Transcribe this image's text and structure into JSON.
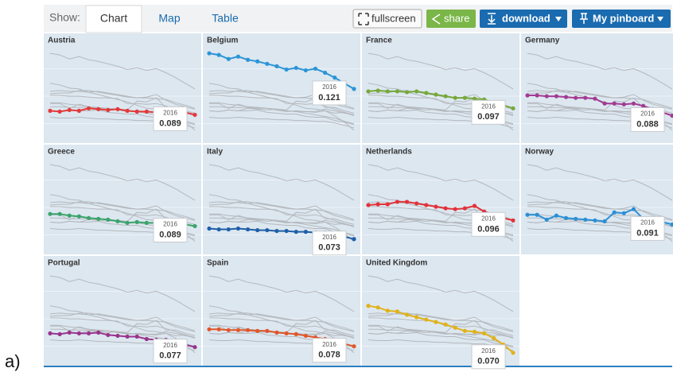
{
  "toolbar": {
    "show_label": "Show:",
    "tabs": [
      "Chart",
      "Map",
      "Table"
    ],
    "buttons": [
      "fullscreen",
      "share",
      "download",
      "My pinboard"
    ]
  },
  "figure_label": "a)",
  "chart_data": {
    "type": "line",
    "categories": [
      null,
      null,
      null,
      null,
      null,
      null,
      null,
      null,
      null,
      null,
      null,
      null,
      null,
      null,
      null,
      "2016"
    ],
    "ylim": [
      0.06,
      0.17
    ],
    "context_color": "#b4b8bd",
    "panel_color": "#dce7f0",
    "series": [
      {
        "name": "Austria",
        "color": "#e23a3a",
        "values": [
          0.094,
          0.093,
          0.095,
          0.094,
          0.097,
          0.096,
          0.095,
          0.096,
          0.094,
          0.093,
          0.093,
          0.092,
          0.094,
          0.091,
          0.092,
          0.089
        ]
      },
      {
        "name": "Belgium",
        "color": "#2b95d6",
        "values": [
          0.165,
          0.163,
          0.158,
          0.161,
          0.157,
          0.155,
          0.152,
          0.149,
          0.145,
          0.147,
          0.144,
          0.146,
          0.141,
          0.135,
          0.128,
          0.121
        ]
      },
      {
        "name": "France",
        "color": "#76a83a",
        "values": [
          0.118,
          0.119,
          0.118,
          0.118,
          0.117,
          0.118,
          0.116,
          0.114,
          0.112,
          0.11,
          0.11,
          0.109,
          0.108,
          0.104,
          0.101,
          0.097
        ]
      },
      {
        "name": "Germany",
        "color": "#a23b92",
        "values": [
          0.113,
          0.113,
          0.112,
          0.112,
          0.111,
          0.11,
          0.11,
          0.109,
          0.103,
          0.103,
          0.102,
          0.103,
          0.1,
          0.096,
          0.092,
          0.088
        ]
      },
      {
        "name": "Greece",
        "color": "#3aa46b",
        "values": [
          0.104,
          0.104,
          0.102,
          0.101,
          0.099,
          0.098,
          0.097,
          0.095,
          0.093,
          0.094,
          0.093,
          0.093,
          0.096,
          0.094,
          0.091,
          0.089
        ]
      },
      {
        "name": "Italy",
        "color": "#1f5fa8",
        "values": [
          0.086,
          0.085,
          0.085,
          0.086,
          0.085,
          0.084,
          0.084,
          0.083,
          0.083,
          0.082,
          0.082,
          0.081,
          0.081,
          0.079,
          0.076,
          0.073
        ]
      },
      {
        "name": "Netherlands",
        "color": "#e2323a",
        "values": [
          0.115,
          0.116,
          0.116,
          0.119,
          0.119,
          0.117,
          0.115,
          0.113,
          0.111,
          0.11,
          0.111,
          0.114,
          0.107,
          0.102,
          0.099,
          0.096
        ]
      },
      {
        "name": "Norway",
        "color": "#2b8fd6",
        "values": [
          0.103,
          0.103,
          0.097,
          0.102,
          0.099,
          0.098,
          0.097,
          0.096,
          0.095,
          0.106,
          0.105,
          0.11,
          0.098,
          0.098,
          0.094,
          0.091
        ]
      },
      {
        "name": "Portugal",
        "color": "#98348c",
        "values": [
          0.094,
          0.093,
          0.095,
          0.094,
          0.094,
          0.095,
          0.092,
          0.091,
          0.09,
          0.09,
          0.087,
          0.086,
          0.086,
          0.082,
          0.08,
          0.077
        ]
      },
      {
        "name": "Spain",
        "color": "#e0572a",
        "values": [
          0.099,
          0.099,
          0.098,
          0.098,
          0.098,
          0.097,
          0.097,
          0.095,
          0.094,
          0.093,
          0.091,
          0.089,
          0.087,
          0.085,
          0.081,
          0.078
        ]
      },
      {
        "name": "United Kingdom",
        "color": "#e0b21a",
        "values": [
          0.128,
          0.126,
          0.122,
          0.121,
          0.117,
          0.114,
          0.111,
          0.108,
          0.105,
          0.101,
          0.097,
          0.096,
          0.094,
          0.088,
          0.08,
          0.07
        ],
        "value_labels": [
          null,
          null,
          null,
          null,
          null,
          null,
          null,
          null,
          null,
          null,
          null,
          null,
          null,
          null,
          null,
          "0.070"
        ]
      }
    ]
  }
}
